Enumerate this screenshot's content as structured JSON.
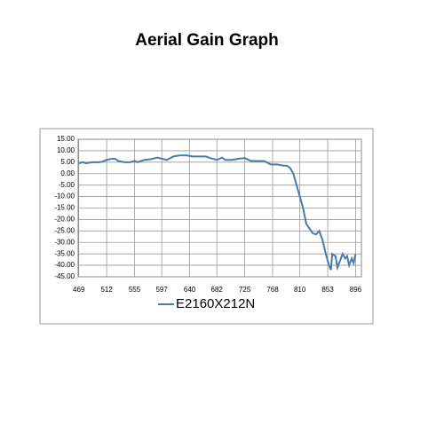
{
  "chart_data": {
    "type": "line",
    "title": "Aerial Gain Graph",
    "x": [
      469,
      475,
      480,
      490,
      500,
      505,
      512,
      520,
      525,
      530,
      540,
      548,
      555,
      560,
      570,
      580,
      590,
      597,
      605,
      615,
      625,
      635,
      645,
      655,
      665,
      675,
      682,
      690,
      695,
      705,
      715,
      725,
      735,
      745,
      755,
      765,
      775,
      785,
      790,
      795,
      800,
      805,
      810,
      815,
      820,
      825,
      830,
      835,
      840,
      845,
      850,
      855,
      858,
      860,
      865,
      868,
      872,
      876,
      880,
      883,
      886,
      890,
      893,
      896
    ],
    "series": [
      {
        "name": "E2160X212N",
        "color": "#4a7bab",
        "values": [
          4.5,
          5,
          4.5,
          5,
          5,
          5.2,
          6,
          6.5,
          6.5,
          5.5,
          5,
          5,
          5.5,
          5,
          6,
          6.3,
          7,
          6.5,
          6,
          7.5,
          8,
          8,
          7.5,
          7.5,
          7.5,
          6.5,
          6,
          7,
          6,
          6,
          6.5,
          6.8,
          5.5,
          5.5,
          5.5,
          4,
          4,
          3.5,
          3.5,
          2.5,
          0,
          -5,
          -10,
          -15,
          -22,
          -24,
          -26,
          -26.5,
          -25,
          -29,
          -35,
          -40,
          -42,
          -35,
          -36,
          -41,
          -38,
          -35,
          -37,
          -36,
          -40,
          -37,
          -39,
          -35
        ]
      }
    ],
    "xlim": [
      468,
      905
    ],
    "xticks": [
      469,
      512,
      555,
      597,
      640,
      682,
      725,
      768,
      810,
      853,
      896
    ],
    "ylim": [
      -45,
      15
    ],
    "yticks": [
      {
        "value": 15,
        "label": "15.00"
      },
      {
        "value": 10,
        "label": "10.00"
      },
      {
        "value": 5,
        "label": "5.00"
      },
      {
        "value": 0,
        "label": "0.00"
      },
      {
        "value": -5,
        "label": "-5.00"
      },
      {
        "value": -10,
        "label": "-10.00"
      },
      {
        "value": -15,
        "label": "-15.00"
      },
      {
        "value": -20,
        "label": "-20.00"
      },
      {
        "value": -25,
        "label": "-25.00"
      },
      {
        "value": -30,
        "label": "-30.00"
      },
      {
        "value": -35,
        "label": "-35.00"
      },
      {
        "value": -40,
        "label": "-40.00"
      },
      {
        "value": -45,
        "label": "-45.00"
      }
    ],
    "grid": true,
    "legend": "bottom"
  }
}
